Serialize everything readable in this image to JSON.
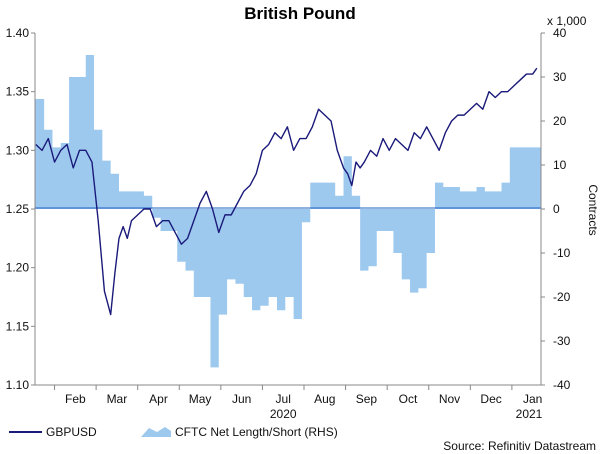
{
  "chart_data": {
    "type": "line",
    "title": "British Pound",
    "left_axis": {
      "ylim": [
        1.1,
        1.4
      ],
      "ticks": [
        "1.10",
        "1.15",
        "1.20",
        "1.25",
        "1.30",
        "1.35",
        "1.40"
      ]
    },
    "right_axis": {
      "label": "Contracts",
      "multiplier_label": "x 1,000",
      "ylim": [
        -40,
        40
      ],
      "ticks": [
        "-40",
        "-30",
        "-20",
        "-10",
        "0",
        "10",
        "20",
        "30",
        "40"
      ]
    },
    "x_ticks": [
      "Feb",
      "Mar",
      "Apr",
      "May",
      "Jun",
      "Jul",
      "Aug",
      "Sep",
      "Oct",
      "Nov",
      "Dec",
      "Jan"
    ],
    "year_labels": [
      {
        "text": "2020",
        "month_index": 6
      },
      {
        "text": "2021",
        "month_index": 12
      }
    ],
    "xlim_months": [
      0.53,
      12.7
    ],
    "series": [
      {
        "name": "GBPUSD",
        "type": "line",
        "axis": "left",
        "color": "#1a1a7a",
        "x": [
          0.55,
          0.7,
          0.85,
          1.0,
          1.15,
          1.3,
          1.45,
          1.6,
          1.75,
          1.9,
          2.05,
          2.2,
          2.35,
          2.45,
          2.55,
          2.65,
          2.75,
          2.85,
          3.0,
          3.15,
          3.3,
          3.45,
          3.6,
          3.75,
          3.9,
          4.05,
          4.2,
          4.35,
          4.5,
          4.65,
          4.8,
          4.95,
          5.1,
          5.25,
          5.4,
          5.55,
          5.7,
          5.85,
          6.0,
          6.15,
          6.3,
          6.45,
          6.6,
          6.75,
          6.9,
          7.05,
          7.2,
          7.35,
          7.5,
          7.65,
          7.8,
          7.95,
          8.05,
          8.15,
          8.25,
          8.35,
          8.45,
          8.6,
          8.75,
          8.9,
          9.05,
          9.2,
          9.35,
          9.5,
          9.65,
          9.8,
          9.95,
          10.1,
          10.25,
          10.4,
          10.55,
          10.7,
          10.85,
          11.0,
          11.15,
          11.3,
          11.45,
          11.6,
          11.75,
          11.9,
          12.05,
          12.2,
          12.35,
          12.5,
          12.6
        ],
        "values": [
          1.305,
          1.3,
          1.31,
          1.29,
          1.3,
          1.305,
          1.285,
          1.3,
          1.3,
          1.29,
          1.24,
          1.18,
          1.16,
          1.195,
          1.225,
          1.235,
          1.225,
          1.24,
          1.245,
          1.25,
          1.25,
          1.235,
          1.24,
          1.24,
          1.23,
          1.22,
          1.225,
          1.24,
          1.255,
          1.265,
          1.25,
          1.23,
          1.245,
          1.245,
          1.255,
          1.265,
          1.27,
          1.28,
          1.3,
          1.305,
          1.315,
          1.31,
          1.32,
          1.3,
          1.31,
          1.31,
          1.32,
          1.335,
          1.33,
          1.325,
          1.3,
          1.285,
          1.28,
          1.27,
          1.29,
          1.285,
          1.29,
          1.3,
          1.295,
          1.31,
          1.3,
          1.31,
          1.305,
          1.3,
          1.315,
          1.31,
          1.32,
          1.31,
          1.3,
          1.315,
          1.325,
          1.33,
          1.33,
          1.335,
          1.34,
          1.335,
          1.35,
          1.345,
          1.35,
          1.35,
          1.355,
          1.36,
          1.365,
          1.365,
          1.37
        ]
      },
      {
        "name": "CFTC Net Length/Short (RHS)",
        "type": "area",
        "axis": "right",
        "color": "#9ec9ef",
        "x": [
          0.53,
          0.75,
          0.95,
          1.15,
          1.35,
          1.55,
          1.75,
          1.95,
          2.15,
          2.35,
          2.55,
          2.75,
          2.95,
          3.15,
          3.35,
          3.55,
          3.75,
          3.95,
          4.15,
          4.35,
          4.55,
          4.75,
          4.95,
          5.15,
          5.35,
          5.55,
          5.75,
          5.95,
          6.15,
          6.35,
          6.55,
          6.75,
          6.95,
          7.15,
          7.35,
          7.55,
          7.75,
          7.95,
          8.15,
          8.35,
          8.55,
          8.75,
          8.95,
          9.15,
          9.35,
          9.55,
          9.75,
          9.95,
          10.15,
          10.35,
          10.55,
          10.75,
          10.95,
          11.15,
          11.35,
          11.55,
          11.75,
          11.95,
          12.15,
          12.35,
          12.55,
          12.7
        ],
        "values": [
          25,
          18,
          14,
          15,
          30,
          30,
          35,
          18,
          11,
          8,
          4,
          4,
          4,
          3,
          -2,
          -5,
          -5,
          -12,
          -14,
          -20,
          -20,
          -36,
          -24,
          -16,
          -17,
          -20,
          -23,
          -22,
          -20,
          -23,
          -20,
          -25,
          -3,
          6,
          6,
          6,
          3,
          12,
          3,
          -14,
          -13,
          -5,
          -5,
          -10,
          -16,
          -19,
          -18,
          -10,
          6,
          5,
          5,
          4,
          4,
          5,
          4,
          4,
          6,
          14,
          14,
          14,
          14,
          14
        ]
      }
    ],
    "legend": {
      "placement": "bottom-left",
      "entries": [
        "GBPUSD",
        "CFTC Net Length/Short (RHS)"
      ]
    },
    "source": "Source: Refinitiv Datastream"
  }
}
